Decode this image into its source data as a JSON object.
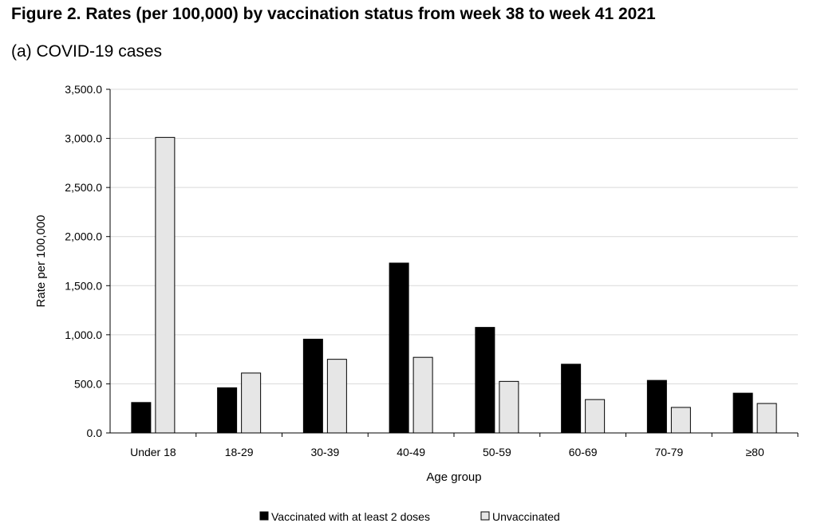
{
  "title": "Figure 2. Rates (per 100,000) by vaccination status from week 38 to week 41 2021",
  "subtitle": "(a) COVID-19 cases",
  "colors": {
    "vaccinated": "#000000",
    "unvaccinated": "#e6e6e6",
    "grid": "#d9d9d9",
    "axis": "#000000"
  },
  "chart_data": {
    "type": "bar",
    "categories": [
      "Under 18",
      "18-29",
      "30-39",
      "40-49",
      "50-59",
      "60-69",
      "70-79",
      "≥80"
    ],
    "series": [
      {
        "name": "Vaccinated with at least 2 doses",
        "values": [
          310,
          460,
          955,
          1730,
          1075,
          700,
          535,
          405
        ]
      },
      {
        "name": "Unvaccinated",
        "values": [
          3010,
          610,
          750,
          770,
          525,
          340,
          260,
          300
        ]
      }
    ],
    "xlabel": "Age group",
    "ylabel": "Rate per 100,000",
    "ylim": [
      0,
      3500
    ],
    "yticks": [
      "0.0",
      "500.0",
      "1,000.0",
      "1,500.0",
      "2,000.0",
      "2,500.0",
      "3,000.0",
      "3,500.0"
    ],
    "ytick_values": [
      0,
      500,
      1000,
      1500,
      2000,
      2500,
      3000,
      3500
    ],
    "grid": true,
    "legend_position": "bottom"
  }
}
